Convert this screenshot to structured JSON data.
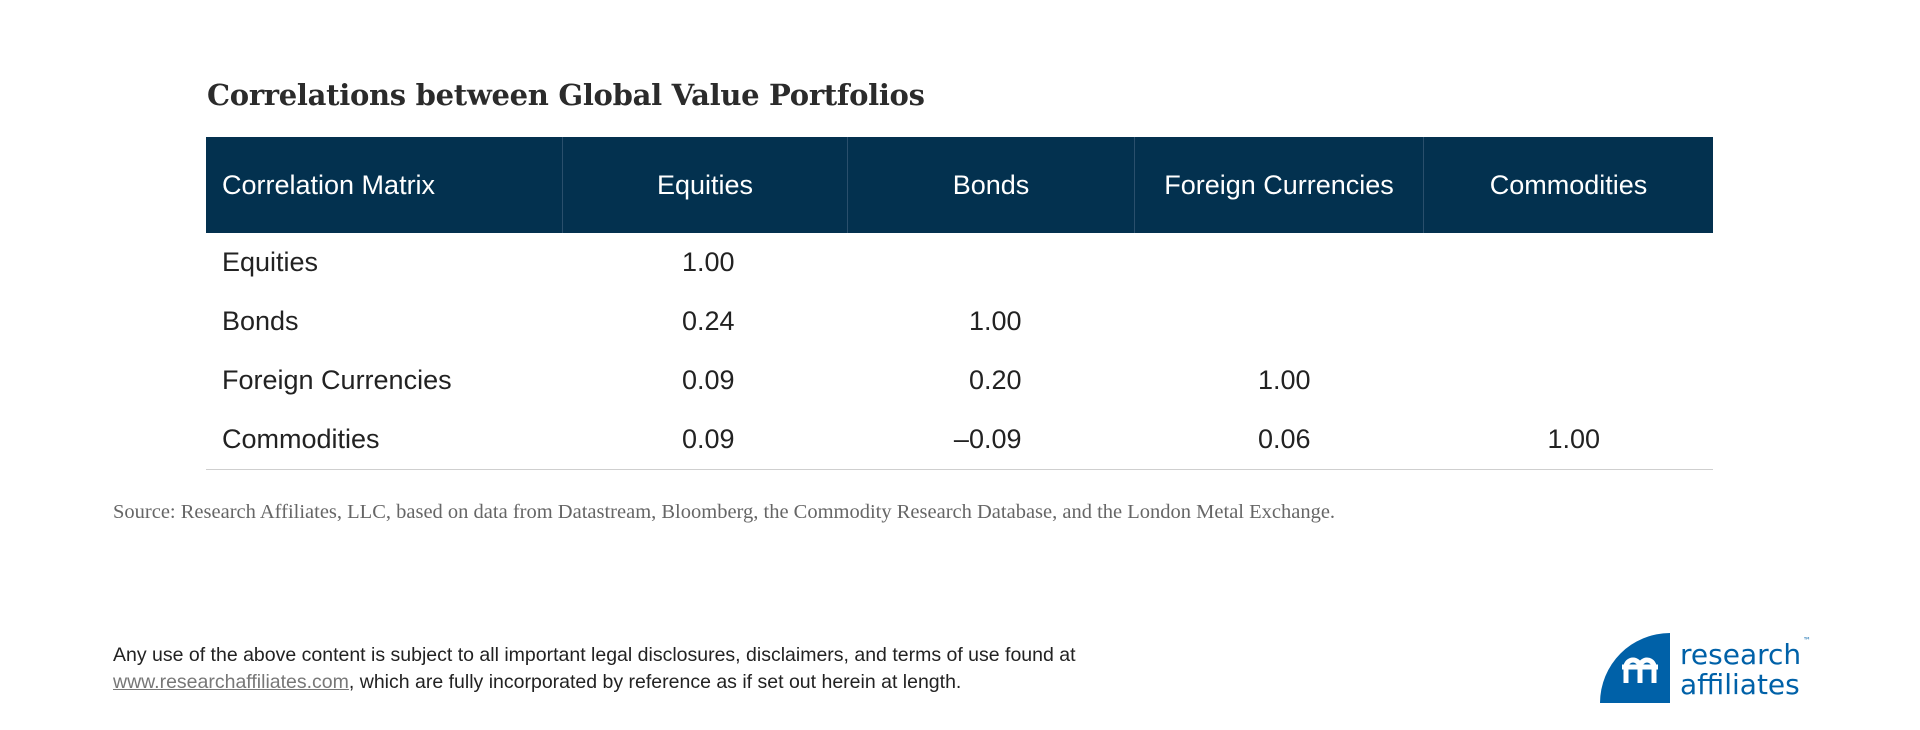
{
  "title": "Correlations between Global Value Portfolios",
  "table": {
    "headers": [
      "Correlation Matrix",
      "Equities",
      "Bonds",
      "Foreign Currencies",
      "Commodities"
    ],
    "rows": [
      {
        "label": "Equities",
        "values": [
          "1.00",
          "",
          "",
          ""
        ]
      },
      {
        "label": "Bonds",
        "values": [
          "0.24",
          "1.00",
          "",
          ""
        ]
      },
      {
        "label": "Foreign Currencies",
        "values": [
          "0.09",
          "0.20",
          "1.00",
          ""
        ]
      },
      {
        "label": "Commodities",
        "values": [
          "0.09",
          "–0.09",
          "0.06",
          "1.00"
        ]
      }
    ],
    "header_color": "#03314f"
  },
  "source": "Source: Research Affiliates, LLC, based on data from Datastream, Bloomberg, the Commodity Research Database, and the London Metal Exchange.",
  "disclaimer": {
    "line1": "Any use of the above content is subject to all important legal disclosures, disclaimers, and terms of use found at",
    "link": "www.researchaffiliates.com",
    "line2_rest": ", which are fully incorporated by reference as if set out herein at length."
  },
  "logo": {
    "line1": "research",
    "line2": "affiliates",
    "tm": "™",
    "color": "#0061a8"
  }
}
